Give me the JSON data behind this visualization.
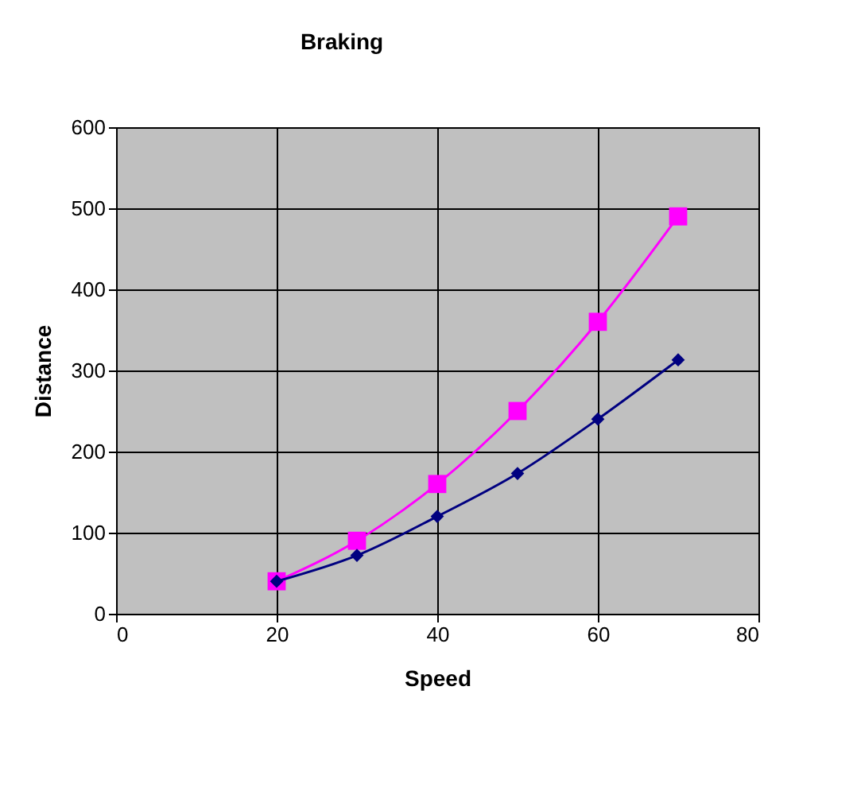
{
  "chart_data": {
    "type": "line",
    "title": "Braking",
    "xlabel": "Speed",
    "ylabel": "Distance",
    "x": [
      20,
      30,
      40,
      50,
      60,
      70
    ],
    "series": [
      {
        "color": "#ff00ff",
        "marker": "square",
        "values": [
          40,
          90,
          160,
          250,
          360,
          490
        ]
      },
      {
        "color": "#000080",
        "marker": "diamond",
        "values": [
          40,
          72,
          120,
          173,
          240,
          313
        ]
      }
    ],
    "xlim": [
      0,
      80
    ],
    "xticks": [
      0,
      20,
      40,
      60,
      80
    ],
    "ylim": [
      0,
      600
    ],
    "yticks": [
      0,
      100,
      200,
      300,
      400,
      500,
      600
    ],
    "grid": true
  }
}
